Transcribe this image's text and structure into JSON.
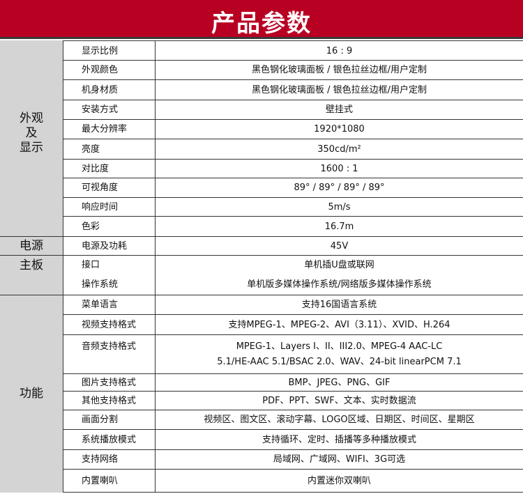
{
  "header": {
    "title": "产品参数",
    "background_color": "#b80022"
  },
  "categories": [
    {
      "label": "外观\n及\n显示",
      "rows": 10
    },
    {
      "label": "电源",
      "rows": 1
    },
    {
      "label": "主板",
      "rows": 1
    },
    {
      "label": "功能",
      "rows": 9
    }
  ],
  "rows": [
    {
      "lines": [
        {
          "label": "显示比例",
          "value": "16 : 9"
        }
      ]
    },
    {
      "lines": [
        {
          "label": "外观颜色",
          "value": "黑色钢化玻璃面板 / 银色拉丝边框/用户定制"
        }
      ]
    },
    {
      "lines": [
        {
          "label": "机身材质",
          "value": "黑色钢化玻璃面板 / 银色拉丝边框/用户定制"
        }
      ]
    },
    {
      "lines": [
        {
          "label": "安装方式",
          "value": "壁挂式"
        }
      ]
    },
    {
      "lines": [
        {
          "label": "最大分辨率",
          "value": "1920*1080"
        }
      ]
    },
    {
      "lines": [
        {
          "label": "亮度",
          "value": "350cd/m²"
        }
      ]
    },
    {
      "lines": [
        {
          "label": "对比度",
          "value": "1600 : 1"
        }
      ]
    },
    {
      "lines": [
        {
          "label": "可视角度",
          "value": "89° / 89° / 89° / 89°"
        }
      ]
    },
    {
      "lines": [
        {
          "label": "响应时间",
          "value": "5m/s"
        }
      ]
    },
    {
      "lines": [
        {
          "label": "色彩",
          "value": "16.7m"
        }
      ]
    },
    {
      "lines": [
        {
          "label": "电源及功耗",
          "value": "45V"
        }
      ]
    },
    {
      "lines": [
        {
          "label": "接口",
          "value": "单机插U盘或联网"
        },
        {
          "label": "操作系统",
          "value": "单机版多媒体操作系统/网络版多媒体操作系统"
        }
      ]
    },
    {
      "lines": [
        {
          "label": "菜单语言",
          "value": "支持16国语言系统"
        }
      ]
    },
    {
      "lines": [
        {
          "label": "视频支持格式",
          "value": "支持MPEG-1、MPEG-2、AVI（3.11）、XVID、H.264"
        }
      ]
    },
    {
      "lines": [
        {
          "label": "音频支持格式",
          "value": "MPEG-1、Layers I、II、III2.0、MPEG-4 AAC-LC"
        },
        {
          "label": "",
          "value": "5.1/HE-AAC 5.1/BSAC 2.0、WAV、24-bit linearPCM 7.1"
        }
      ]
    },
    {
      "lines": [
        {
          "label": "图片支持格式",
          "value": "BMP、JPEG、PNG、GIF"
        }
      ]
    },
    {
      "lines": [
        {
          "label": "其他支持格式",
          "value": "PDF、PPT、SWF、文本、实时数据流"
        }
      ]
    },
    {
      "lines": [
        {
          "label": "画面分割",
          "value": "视频区、图文区、滚动字幕、LOGO区域、日期区、时间区、星期区"
        }
      ]
    },
    {
      "lines": [
        {
          "label": "系统播放模式",
          "value": "支持循环、定时、插播等多种播放模式"
        }
      ]
    },
    {
      "lines": [
        {
          "label": "支持网络",
          "value": "局域网、广域网、WIFI、3G可选"
        }
      ]
    },
    {
      "lines": [
        {
          "label": "内置喇叭",
          "value": "内置迷你双喇叭"
        }
      ]
    }
  ]
}
